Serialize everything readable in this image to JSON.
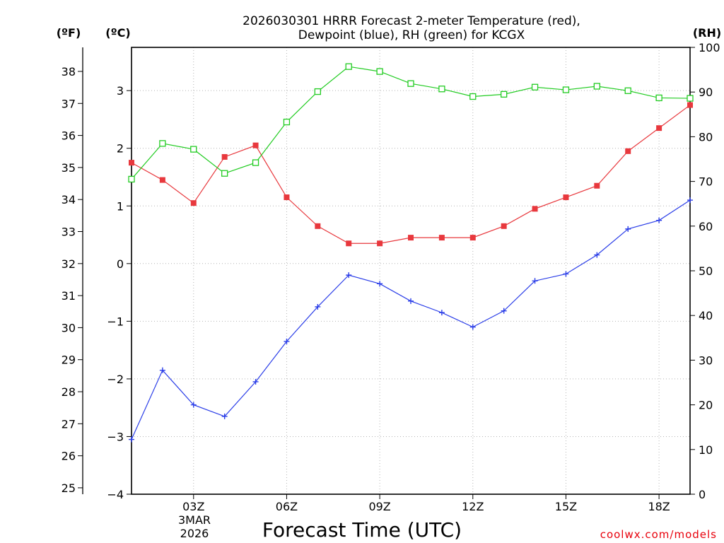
{
  "chart_data": {
    "type": "line",
    "title_lines": [
      "2026030301 HRRR Forecast 2-meter Temperature (red),",
      "Dewpoint (blue), RH (green) for KCGX"
    ],
    "xlabel": "Forecast Time (UTC)",
    "watermark": "coolwx.com/models",
    "units": {
      "fahrenheit": "(ºF)",
      "celsius": "(ºC)",
      "rh": "(RH)"
    },
    "x_hours": [
      1,
      2,
      3,
      4,
      5,
      6,
      7,
      8,
      9,
      10,
      11,
      12,
      13,
      14,
      15,
      16,
      17,
      18,
      19
    ],
    "xlim": [
      1,
      19
    ],
    "x_ticks": [
      {
        "hour": 3,
        "label": "03Z"
      },
      {
        "hour": 6,
        "label": "06Z"
      },
      {
        "hour": 9,
        "label": "09Z"
      },
      {
        "hour": 12,
        "label": "12Z"
      },
      {
        "hour": 15,
        "label": "15Z"
      },
      {
        "hour": 18,
        "label": "18Z"
      }
    ],
    "date_label_lines": [
      "3MAR",
      "2026"
    ],
    "celsius_axis": {
      "range": [
        -4,
        3.75
      ],
      "ticks": [
        -4,
        -3,
        -2,
        -1,
        0,
        1,
        2,
        3
      ],
      "tick_labels": [
        "−4",
        "−3",
        "−2",
        "−1",
        "0",
        "1",
        "2",
        "3"
      ]
    },
    "fahrenheit_axis": {
      "range": [
        24.8,
        38.75
      ],
      "ticks": [
        25,
        26,
        27,
        28,
        29,
        30,
        31,
        32,
        33,
        34,
        35,
        36,
        37,
        38
      ]
    },
    "rh_axis": {
      "range": [
        0,
        100
      ],
      "ticks": [
        0,
        10,
        20,
        30,
        40,
        50,
        60,
        70,
        80,
        90,
        100
      ]
    },
    "series": [
      {
        "name": "2-meter Temperature",
        "color": "#e8383d",
        "marker": "filled-square",
        "axis": "celsius",
        "values": [
          1.75,
          1.45,
          1.05,
          1.85,
          2.05,
          1.15,
          0.65,
          0.35,
          0.35,
          0.45,
          0.45,
          0.45,
          0.65,
          0.95,
          1.15,
          1.35,
          1.95,
          2.35,
          2.75
        ]
      },
      {
        "name": "Dewpoint",
        "color": "#2b3ee8",
        "marker": "plus",
        "axis": "celsius",
        "values": [
          -3.05,
          -1.85,
          -2.45,
          -2.65,
          -2.05,
          -1.35,
          -0.75,
          -0.2,
          -0.35,
          -0.65,
          -0.85,
          -1.1,
          -0.82,
          -0.3,
          -0.18,
          0.15,
          0.6,
          0.75,
          1.1
        ]
      },
      {
        "name": "Relative Humidity",
        "color": "#22cc22",
        "marker": "open-square",
        "axis": "rh",
        "values": [
          70.5,
          78.5,
          77.2,
          71.8,
          74.2,
          83.3,
          90.1,
          95.7,
          94.6,
          91.9,
          90.7,
          89.0,
          89.5,
          91.1,
          90.5,
          91.3,
          90.3,
          88.7,
          88.6
        ]
      }
    ]
  }
}
